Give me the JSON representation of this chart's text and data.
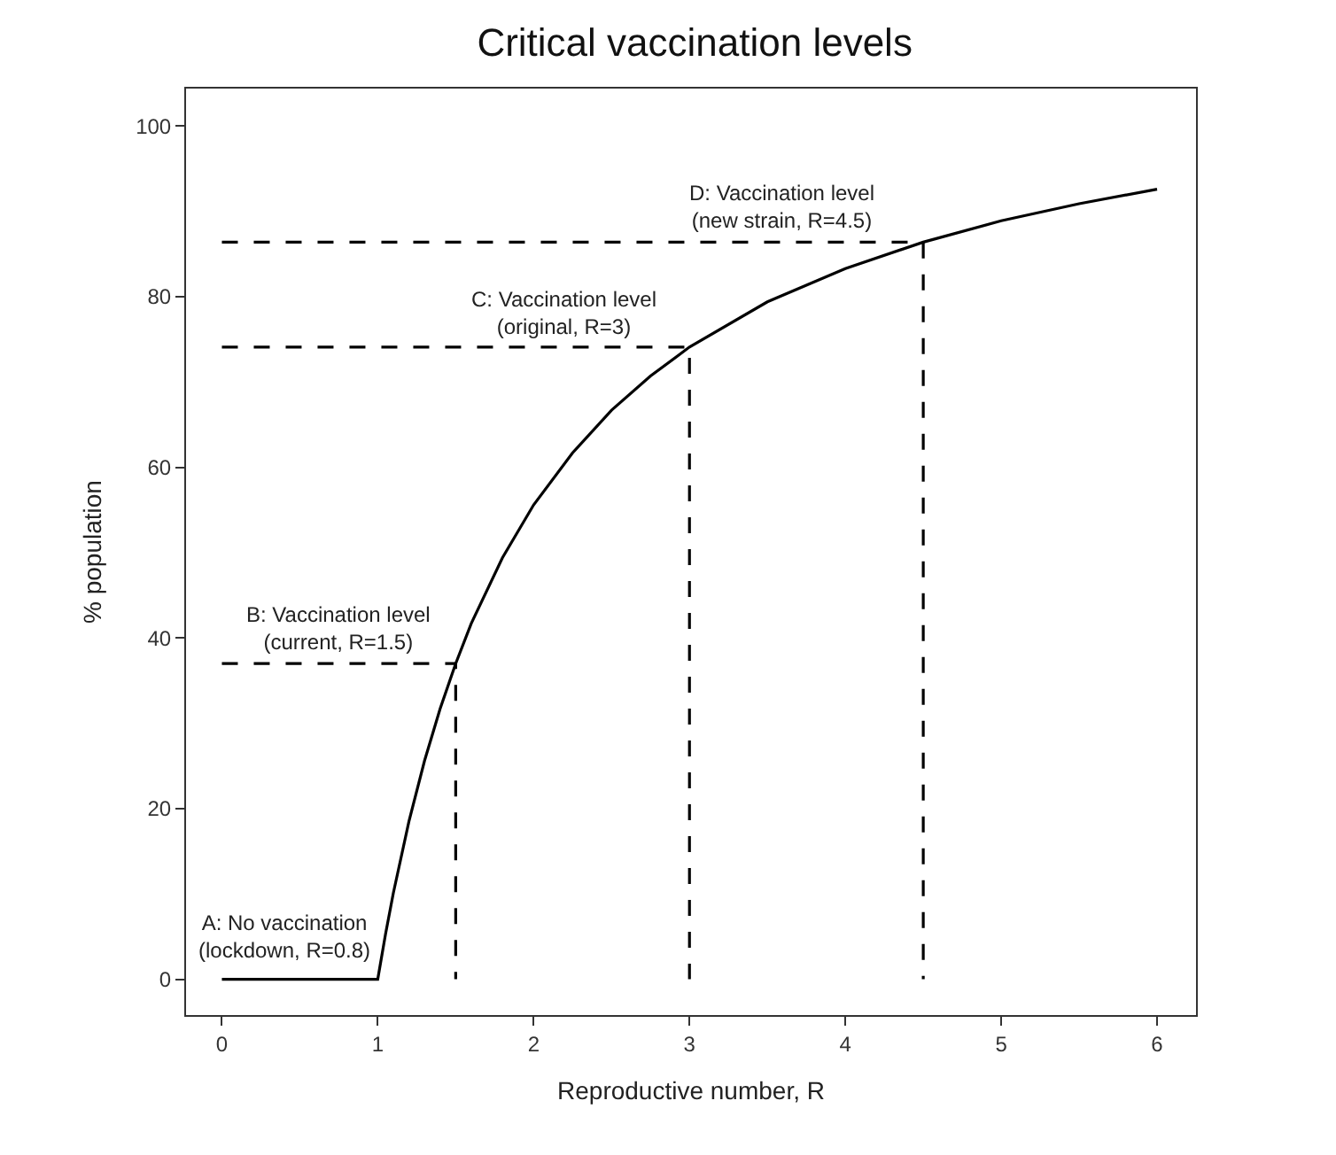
{
  "chart_data": {
    "type": "line",
    "title": "Critical vaccination levels",
    "xlabel": "Reproductive number, R",
    "ylabel": "% population",
    "xlim": [
      -0.23,
      6.25
    ],
    "xticks": [
      0,
      1,
      2,
      3,
      4,
      5,
      6
    ],
    "ylim": [
      -4.2,
      104.4
    ],
    "yticks": [
      0,
      20,
      40,
      60,
      80,
      100
    ],
    "marker": "none",
    "line_style": "solid",
    "series": [
      {
        "color": "#000000",
        "x": [
          0,
          1,
          1.05,
          1.1,
          1.2,
          1.3,
          1.4,
          1.5,
          1.6,
          1.8,
          2,
          2.25,
          2.5,
          2.75,
          3,
          3.5,
          4,
          4.5,
          5,
          5.5,
          6
        ],
        "values": [
          0,
          0,
          5.3,
          10.1,
          18.5,
          25.6,
          31.7,
          37.0,
          41.7,
          49.4,
          55.6,
          61.7,
          66.7,
          70.7,
          74.1,
          79.4,
          83.3,
          86.4,
          88.9,
          90.9,
          92.6
        ]
      },
      {
        "color": "#000000",
        "line_style": "dashed",
        "x": [
          0,
          1.5,
          1.5
        ],
        "values": [
          37.0,
          37.0,
          0
        ]
      },
      {
        "color": "#000000",
        "line_style": "dashed",
        "x": [
          0,
          3,
          3
        ],
        "values": [
          74.1,
          74.1,
          0
        ]
      },
      {
        "color": "#000000",
        "line_style": "dashed",
        "x": [
          0,
          4.5,
          4.5
        ],
        "values": [
          86.4,
          86.4,
          0
        ]
      }
    ],
    "annotations": [
      "A: No vaccination\n(lockdown, R=0.8)",
      "B: Vaccination level\n(current, R=1.5)",
      "C: Vaccination level\n(original, R=3)",
      "D: Vaccination level\n(new strain, R=4.5)"
    ]
  }
}
